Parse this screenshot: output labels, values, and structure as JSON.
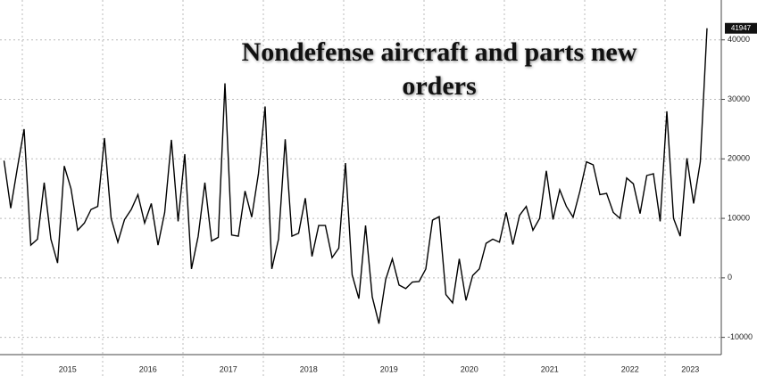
{
  "chart_data": {
    "type": "line",
    "title": "Nondefense aircraft and parts new orders",
    "categories": [
      null,
      null,
      null,
      null,
      null,
      null,
      null,
      null,
      null,
      null,
      "2015",
      null,
      null,
      null,
      null,
      null,
      null,
      null,
      null,
      null,
      null,
      null,
      "2016",
      null,
      null,
      null,
      null,
      null,
      null,
      null,
      null,
      null,
      null,
      null,
      "2017",
      null,
      null,
      null,
      null,
      null,
      null,
      null,
      null,
      null,
      null,
      null,
      "2018",
      null,
      null,
      null,
      null,
      null,
      null,
      null,
      null,
      null,
      null,
      null,
      "2019",
      null,
      null,
      null,
      null,
      null,
      null,
      null,
      null,
      null,
      null,
      null,
      "2020",
      null,
      null,
      null,
      null,
      null,
      null,
      null,
      null,
      null,
      null,
      null,
      "2021",
      null,
      null,
      null,
      null,
      null,
      null,
      null,
      null,
      null,
      null,
      null,
      "2022",
      null,
      null,
      null,
      null,
      null,
      null,
      null,
      null,
      "2023",
      null,
      null
    ],
    "values": [
      19700,
      11700,
      18500,
      25000,
      5500,
      6500,
      16000,
      6500,
      2500,
      18800,
      15000,
      8000,
      9200,
      11500,
      12000,
      23500,
      10000,
      6000,
      9800,
      11500,
      14000,
      9200,
      12500,
      5500,
      11000,
      23200,
      9500,
      20800,
      1500,
      7000,
      16000,
      6200,
      6800,
      32700,
      7200,
      7000,
      14600,
      10200,
      17500,
      28800,
      1500,
      6500,
      23300,
      7000,
      7500,
      13400,
      3600,
      8800,
      8800,
      3400,
      5000,
      19300,
      500,
      -3500,
      8800,
      -3200,
      -7700,
      -300,
      3200,
      -1200,
      -1800,
      -700,
      -600,
      1500,
      9700,
      10300,
      -2800,
      -4200,
      3200,
      -3800,
      400,
      1500,
      5800,
      6500,
      6000,
      11000,
      5600,
      10500,
      12000,
      8000,
      10000,
      18000,
      9800,
      14800,
      12000,
      10200,
      14500,
      19500,
      19000,
      14000,
      14200,
      11000,
      10000,
      16800,
      15800,
      10800,
      17200,
      17500,
      9500,
      28000,
      10000,
      7000,
      20100,
      12500,
      19500,
      41947
    ],
    "color": "#000000",
    "ylim": [
      -12900,
      46700
    ],
    "yticks": [
      -10000,
      0,
      10000,
      20000,
      30000,
      40000
    ],
    "grid": true
  }
}
